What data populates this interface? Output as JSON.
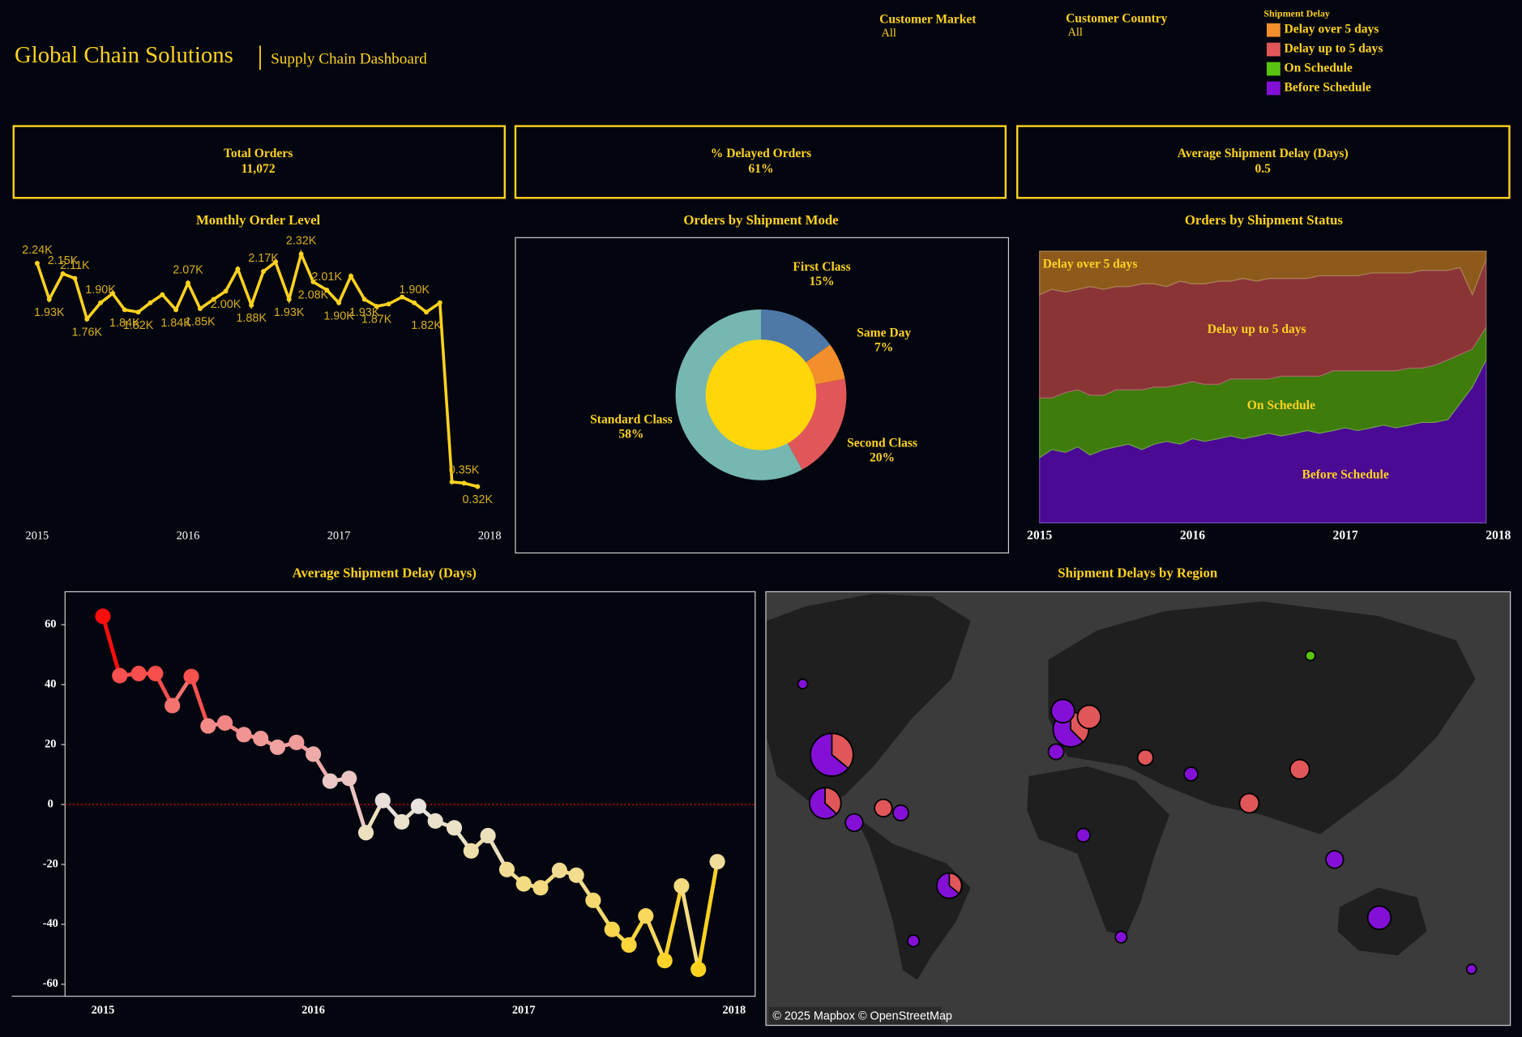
{
  "header": {
    "title": "Global Chain Solutions",
    "subtitle": "Supply Chain Dashboard"
  },
  "filters": [
    {
      "label": "Customer Market",
      "value": "All"
    },
    {
      "label": "Customer Country",
      "value": "All"
    }
  ],
  "legend": {
    "title": "Shipment Delay",
    "items": [
      {
        "name": "Delay over 5 days",
        "color": "#f28e2b"
      },
      {
        "name": "Delay up to 5 days",
        "color": "#e15759"
      },
      {
        "name": "On Schedule",
        "color": "#59c40f"
      },
      {
        "name": "Before Schedule",
        "color": "#8410d8"
      }
    ]
  },
  "kpis": [
    {
      "label": "Total Orders",
      "value": "11,072"
    },
    {
      "label": "% Delayed Orders",
      "value": "61%"
    },
    {
      "label": "Average Shipment Delay (Days)",
      "value": "0.5"
    }
  ],
  "chart_data": [
    {
      "type": "line",
      "title": "Monthly Order Level",
      "color": "#ffd21f",
      "x": [
        2015,
        2015.08,
        2015.17,
        2015.25,
        2015.33,
        2015.42,
        2015.5,
        2015.58,
        2015.67,
        2015.75,
        2015.83,
        2015.92,
        2016,
        2016.08,
        2016.17,
        2016.25,
        2016.33,
        2016.42,
        2016.5,
        2016.58,
        2016.67,
        2016.75,
        2016.83,
        2016.92,
        2017,
        2017.08,
        2017.17,
        2017.25,
        2017.33,
        2017.42,
        2017.5,
        2017.58,
        2017.67,
        2017.75,
        2017.83,
        2017.92
      ],
      "values": [
        2240,
        1930,
        2150,
        2110,
        1760,
        1900,
        1980,
        1840,
        1820,
        1900,
        1970,
        1840,
        2070,
        1850,
        1930,
        2000,
        2190,
        1880,
        2170,
        2250,
        1930,
        2320,
        2080,
        2010,
        1900,
        2130,
        1930,
        1870,
        1890,
        1950,
        1900,
        1820,
        1900,
        360,
        350,
        320
      ],
      "value_labels": [
        "2.24K",
        "1.93K",
        "2.15K",
        "2.11K",
        "1.76K",
        "1.90K",
        null,
        "1.84K",
        "1.82K",
        null,
        null,
        "1.84K",
        "2.07K",
        "1.85K",
        null,
        "2.00K",
        null,
        "1.88K",
        "2.17K",
        null,
        "1.93K",
        "2.32K",
        "2.08K",
        "2.01K",
        "1.90K",
        null,
        "1.93K",
        "1.87K",
        null,
        null,
        "1.90K",
        "1.82K",
        null,
        null,
        "0.35K",
        "0.32K"
      ],
      "xlim": [
        2014.85,
        2018.1
      ],
      "xticks": [
        2015,
        2016,
        2017,
        2018
      ],
      "ylim": [
        0,
        2460
      ]
    },
    {
      "type": "pie",
      "title": "Orders by Shipment Mode",
      "categories": [
        "First Class",
        "Same Day",
        "Second Class",
        "Standard Class"
      ],
      "values": [
        15,
        7,
        20,
        58
      ],
      "value_labels": [
        "15%",
        "7%",
        "20%",
        "58%"
      ],
      "colors": [
        "#4e79a7",
        "#f28e2b",
        "#e15759",
        "#76b7b2"
      ],
      "center_color": "#ffd60a"
    },
    {
      "type": "area",
      "stacked": true,
      "title": "Orders by Shipment Status",
      "x": [
        2015,
        2015.08,
        2015.17,
        2015.25,
        2015.33,
        2015.42,
        2015.5,
        2015.58,
        2015.67,
        2015.75,
        2015.83,
        2015.92,
        2016,
        2016.08,
        2016.17,
        2016.25,
        2016.33,
        2016.42,
        2016.5,
        2016.58,
        2016.67,
        2016.75,
        2016.83,
        2016.92,
        2017,
        2017.08,
        2017.17,
        2017.25,
        2017.33,
        2017.42,
        2017.5,
        2017.58,
        2017.67,
        2017.75,
        2017.83,
        2017.92
      ],
      "xlim": [
        2015,
        2017.92
      ],
      "xticks": [
        2015,
        2016,
        2017,
        2018
      ],
      "ylim": [
        0,
        100
      ],
      "series": [
        {
          "name": "Before Schedule",
          "color": "#4a0a93",
          "values": [
            24,
            27,
            26,
            28,
            25,
            27,
            28,
            29,
            27,
            29,
            30,
            29,
            31,
            30,
            31,
            32,
            31,
            32,
            33,
            32,
            33,
            34,
            33,
            34,
            35,
            34,
            35,
            36,
            35,
            36,
            37,
            37,
            38,
            44,
            50,
            60
          ]
        },
        {
          "name": "On Schedule",
          "color": "#3e7c0c",
          "values": [
            22,
            19,
            22,
            21,
            22,
            20,
            21,
            20,
            22,
            21,
            20,
            22,
            21,
            21,
            20,
            21,
            22,
            21,
            20,
            22,
            21,
            20,
            21,
            22,
            21,
            22,
            21,
            20,
            21,
            21,
            20,
            21,
            22,
            18,
            14,
            12
          ]
        },
        {
          "name": "Delay up to 5 days",
          "color": "#8a3436",
          "values": [
            38,
            40,
            37,
            37,
            40,
            39,
            38,
            38,
            39,
            38,
            37,
            38,
            36,
            37,
            38,
            36,
            37,
            36,
            37,
            36,
            36,
            36,
            37,
            35,
            35,
            35,
            36,
            36,
            36,
            35,
            36,
            35,
            33,
            32,
            20,
            25
          ]
        },
        {
          "name": "Delay over 5 days",
          "color": "#8e5a1c",
          "values": [
            16,
            14,
            15,
            14,
            13,
            14,
            13,
            13,
            12,
            12,
            13,
            11,
            12,
            12,
            11,
            11,
            10,
            11,
            10,
            10,
            10,
            10,
            9,
            9,
            9,
            9,
            8,
            8,
            8,
            8,
            7,
            7,
            7,
            6,
            16,
            3
          ]
        }
      ]
    },
    {
      "type": "line",
      "title": "Average Shipment Delay (Days)",
      "x": [
        2015,
        2015.08,
        2015.17,
        2015.25,
        2015.33,
        2015.42,
        2015.5,
        2015.58,
        2015.67,
        2015.75,
        2015.83,
        2015.92,
        2016,
        2016.08,
        2016.17,
        2016.25,
        2016.33,
        2016.42,
        2016.5,
        2016.58,
        2016.67,
        2016.75,
        2016.83,
        2016.92,
        2017,
        2017.08,
        2017.17,
        2017.25,
        2017.33,
        2017.42,
        2017.5,
        2017.58,
        2017.67,
        2017.75,
        2017.83,
        2017.92
      ],
      "values": [
        62.8,
        43,
        43.7,
        43.7,
        33,
        42.7,
        26.2,
        27.2,
        23.3,
        22,
        19.1,
        20.7,
        16.8,
        7.8,
        8.7,
        -9.4,
        1.3,
        -5.8,
        -0.6,
        -5.5,
        -7.8,
        -15.5,
        -10.4,
        -21.7,
        -26.5,
        -27.8,
        -22,
        -23.6,
        -32,
        -41.7,
        -46.9,
        -37.2,
        -52.1,
        -27.2,
        -55,
        -19.1
      ],
      "color_scale": {
        "low": "#ffd21f",
        "mid": "#e8e3df",
        "high": "#ff0d0d"
      },
      "reference_line": 0,
      "reference_color": "#d01010",
      "xlim": [
        2014.82,
        2018.1
      ],
      "xticks": [
        2015,
        2016,
        2017,
        2018
      ],
      "ylim": [
        -64,
        71
      ],
      "yticks": [
        60,
        40,
        20,
        0,
        -20,
        -40,
        -60
      ]
    },
    {
      "type": "map",
      "title": "Shipment Delays by Region",
      "attribution": "© 2025 Mapbox © OpenStreetMap"
    }
  ]
}
